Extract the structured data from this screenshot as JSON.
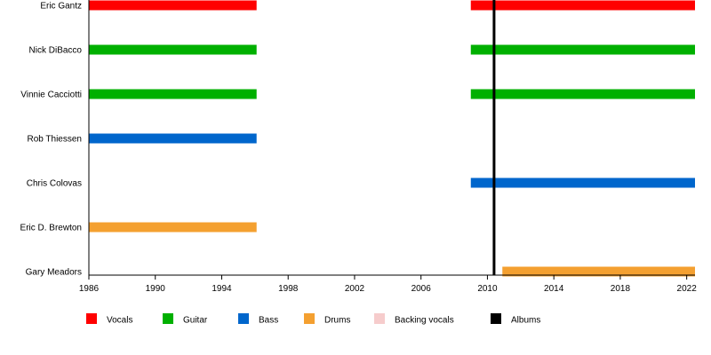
{
  "chart_data": {
    "type": "timeline",
    "x_axis": {
      "min": 1986,
      "max": 2022.5,
      "ticks": [
        "1986",
        "1990",
        "1994",
        "1998",
        "2002",
        "2006",
        "2010",
        "2014",
        "2018",
        "2022"
      ]
    },
    "members": [
      {
        "name": "Eric Gantz",
        "bars": [
          {
            "role": "Vocals",
            "start": 1986,
            "end": 1996.1
          },
          {
            "role": "Vocals",
            "start": 2009,
            "end": 2022.5
          }
        ]
      },
      {
        "name": "Nick DiBacco",
        "bars": [
          {
            "role": "Guitar",
            "start": 1986,
            "end": 1996.1
          },
          {
            "role": "Guitar",
            "start": 2009,
            "end": 2022.5
          }
        ]
      },
      {
        "name": "Vinnie Cacciotti",
        "bars": [
          {
            "role": "Guitar",
            "start": 1986,
            "end": 1996.1
          },
          {
            "role": "Guitar",
            "start": 2009,
            "end": 2022.5
          }
        ]
      },
      {
        "name": "Rob Thiessen",
        "bars": [
          {
            "role": "Bass",
            "start": 1986,
            "end": 1996.1
          }
        ]
      },
      {
        "name": "Chris Colovas",
        "bars": [
          {
            "role": "Bass",
            "start": 2009,
            "end": 2022.5
          }
        ]
      },
      {
        "name": "Eric D. Brewton",
        "bars": [
          {
            "role": "Drums",
            "start": 1986,
            "end": 1996.1
          }
        ]
      },
      {
        "name": "Gary Meadors",
        "bars": [
          {
            "role": "Drums",
            "start": 2010.9,
            "end": 2022.5
          }
        ]
      }
    ],
    "albums": [
      2010.4
    ],
    "legend": [
      {
        "label": "Vocals",
        "color": "#ff0000"
      },
      {
        "label": "Guitar",
        "color": "#00b000"
      },
      {
        "label": "Bass",
        "color": "#0066cc"
      },
      {
        "label": "Drums",
        "color": "#f4a030"
      },
      {
        "label": "Backing vocals",
        "color": "#f6cccc"
      },
      {
        "label": "Albums",
        "color": "#000000"
      }
    ],
    "legend_position": "bottom",
    "grid": false
  }
}
